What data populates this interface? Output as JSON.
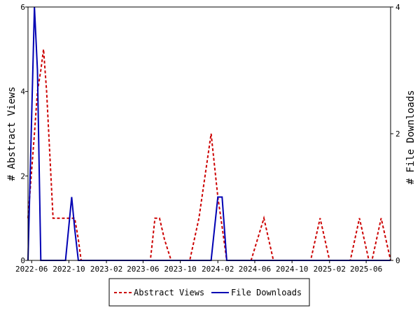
{
  "chart_data": {
    "type": "line",
    "x": [
      "2022-05-20",
      "2022-06-10",
      "2022-06-20",
      "2022-07-01",
      "2022-07-10",
      "2022-07-20",
      "2022-08-10",
      "2022-09-20",
      "2022-10-10",
      "2022-10-20",
      "2022-11-01",
      "2022-11-10",
      "2023-06-25",
      "2023-07-10",
      "2023-07-25",
      "2023-08-10",
      "2023-09-01",
      "2023-11-01",
      "2023-12-01",
      "2024-01-10",
      "2024-02-01",
      "2024-02-15",
      "2024-03-01",
      "2024-03-20",
      "2024-05-20",
      "2024-07-01",
      "2024-08-01",
      "2024-09-01",
      "2024-12-01",
      "2025-01-01",
      "2025-02-01",
      "2025-04-10",
      "2025-05-10",
      "2025-06-10",
      "2025-06-20",
      "2025-07-20",
      "2025-08-20"
    ],
    "xlim": [
      "2022-05-20",
      "2025-08-20"
    ],
    "x_ticks": [
      "2022-06",
      "2022-10",
      "2023-02",
      "2023-06",
      "2023-10",
      "2024-02",
      "2024-06",
      "2024-10",
      "2025-02",
      "2025-06"
    ],
    "ylabel": "# Abstract Views",
    "y2label": "# File Downloads",
    "ylim": [
      0,
      6
    ],
    "y2lim": [
      0,
      4
    ],
    "y_ticks": [
      0,
      2,
      4,
      6
    ],
    "y2_ticks": [
      0,
      2,
      4
    ],
    "grid": false,
    "legend_position": "bottom",
    "series": [
      {
        "name": "Abstract Views",
        "axis": "left",
        "color": "#cc0000",
        "style": "dashed",
        "values": [
          1,
          3,
          4,
          4.5,
          5,
          4,
          1,
          1,
          1,
          1,
          0.5,
          0,
          0,
          1,
          1,
          0.5,
          0,
          0,
          1,
          3,
          1.5,
          0.8,
          0,
          0,
          0,
          1,
          0,
          0,
          0,
          1,
          0,
          0,
          1,
          0,
          0,
          1,
          0
        ]
      },
      {
        "name": "File Downloads",
        "axis": "right",
        "color": "#0000b3",
        "style": "solid",
        "values": [
          0,
          4,
          3,
          0,
          0,
          0,
          0,
          0,
          1,
          0.5,
          0,
          0,
          0,
          0,
          0,
          0,
          0,
          0,
          0,
          0,
          1,
          1,
          0,
          0,
          0,
          0,
          0,
          0,
          0,
          0,
          0,
          0,
          0,
          0,
          0,
          0,
          0
        ]
      }
    ]
  }
}
